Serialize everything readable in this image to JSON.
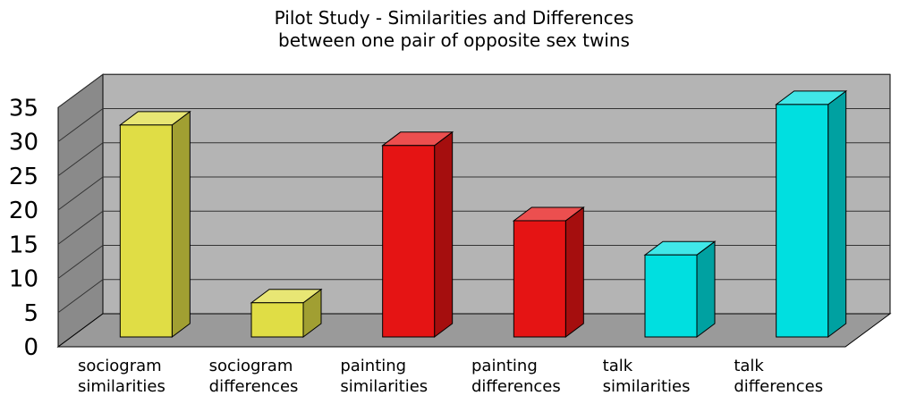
{
  "chart_data": {
    "type": "bar",
    "title_line1": "Pilot Study - Similarities and Differences",
    "title_line2": "between one pair of opposite sex twins",
    "categories": [
      [
        "sociogram",
        "similarities"
      ],
      [
        "sociogram",
        "differences"
      ],
      [
        "painting",
        "similarities"
      ],
      [
        "painting",
        "differences"
      ],
      [
        "talk",
        "similarities"
      ],
      [
        "talk",
        "differences"
      ]
    ],
    "values": [
      31,
      5,
      28,
      17,
      12,
      34
    ],
    "colors": [
      "#e0dd45",
      "#e0dd45",
      "#e51414",
      "#e51414",
      "#00dfe0",
      "#00dfe0"
    ],
    "ylim": [
      0,
      35
    ],
    "yticks": [
      0,
      5,
      10,
      15,
      20,
      25,
      30,
      35
    ],
    "grid": true,
    "xlabel": "",
    "ylabel": ""
  }
}
